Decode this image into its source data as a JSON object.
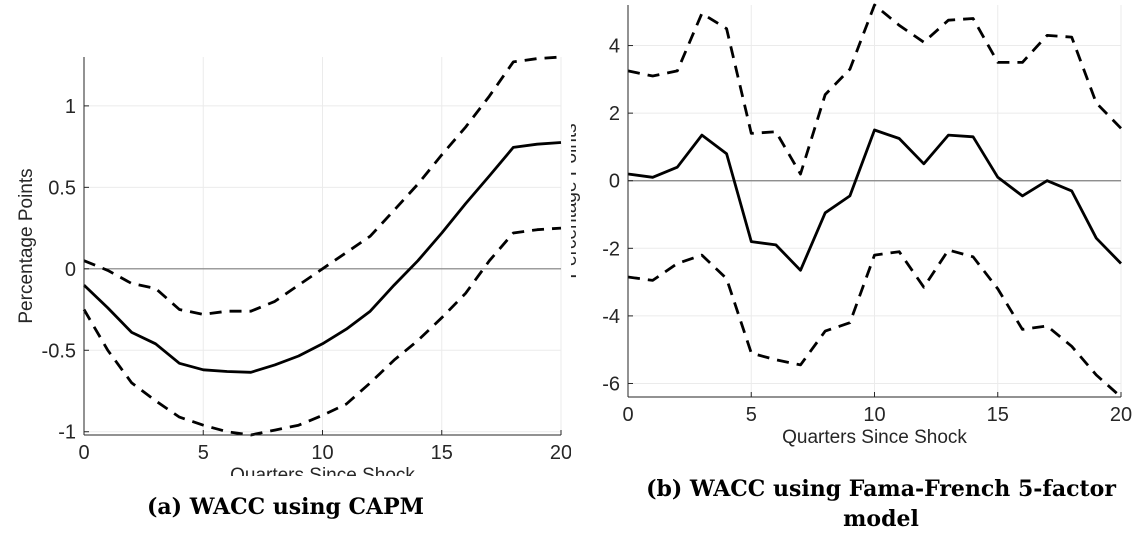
{
  "chart_data": [
    {
      "type": "line",
      "caption": "(a) WACC using CAPM",
      "xlabel": "Quarters Since Shock",
      "ylabel": "Percentage Points",
      "xlim": [
        0,
        20
      ],
      "ylim": [
        -1.02,
        1.3
      ],
      "xticks": [
        0,
        5,
        10,
        15,
        20
      ],
      "yticks": [
        -1,
        -0.5,
        0,
        0.5,
        1
      ],
      "ytick_labels": [
        "-1",
        "-0.5",
        "0",
        "0.5",
        "1"
      ],
      "grid": true,
      "zero_line": 0,
      "series": [
        {
          "role": "estimate",
          "style": "solid",
          "x": [
            0,
            1,
            2,
            3,
            4,
            5,
            6,
            7,
            8,
            9,
            10,
            11,
            12,
            13,
            14,
            15,
            16,
            17,
            18,
            19,
            20
          ],
          "y": [
            -0.1,
            -0.24,
            -0.39,
            -0.46,
            -0.58,
            -0.62,
            -0.63,
            -0.635,
            -0.59,
            -0.535,
            -0.46,
            -0.37,
            -0.26,
            -0.1,
            0.05,
            0.22,
            0.4,
            0.57,
            0.745,
            0.765,
            0.775
          ]
        },
        {
          "role": "upper",
          "style": "dashed",
          "x": [
            0,
            1,
            2,
            3,
            4,
            5,
            6,
            7,
            8,
            9,
            10,
            11,
            12,
            13,
            14,
            15,
            16,
            17,
            18,
            19,
            20
          ],
          "y": [
            0.05,
            -0.01,
            -0.09,
            -0.12,
            -0.25,
            -0.28,
            -0.26,
            -0.26,
            -0.2,
            -0.1,
            0.0,
            0.1,
            0.2,
            0.36,
            0.52,
            0.7,
            0.87,
            1.06,
            1.27,
            1.29,
            1.3
          ]
        },
        {
          "role": "lower",
          "style": "dashed",
          "x": [
            0,
            1,
            2,
            3,
            4,
            5,
            6,
            7,
            8,
            9,
            10,
            11,
            12,
            13,
            14,
            15,
            16,
            17,
            18,
            19,
            20
          ],
          "y": [
            -0.25,
            -0.5,
            -0.7,
            -0.81,
            -0.91,
            -0.96,
            -1.0,
            -1.02,
            -0.99,
            -0.96,
            -0.9,
            -0.83,
            -0.7,
            -0.56,
            -0.44,
            -0.3,
            -0.15,
            0.05,
            0.22,
            0.24,
            0.25
          ]
        }
      ]
    },
    {
      "type": "line",
      "caption": "(b) WACC using Fama-French 5-factor model",
      "xlabel": "Quarters Since Shock",
      "ylabel": "Percentage Points",
      "xlim": [
        0,
        20
      ],
      "ylim": [
        -6.4,
        5.2
      ],
      "xticks": [
        0,
        5,
        10,
        15,
        20
      ],
      "yticks": [
        -6,
        -4,
        -2,
        0,
        2,
        4
      ],
      "ytick_labels": [
        "-6",
        "-4",
        "-2",
        "0",
        "2",
        "4"
      ],
      "grid": true,
      "zero_line": 0,
      "series": [
        {
          "role": "estimate",
          "style": "solid",
          "x": [
            0,
            1,
            2,
            3,
            4,
            5,
            6,
            7,
            8,
            9,
            10,
            11,
            12,
            13,
            14,
            15,
            16,
            17,
            18,
            19,
            20
          ],
          "y": [
            0.2,
            0.1,
            0.4,
            1.35,
            0.8,
            -1.8,
            -1.9,
            -2.65,
            -0.95,
            -0.45,
            1.5,
            1.25,
            0.5,
            1.35,
            1.3,
            0.1,
            -0.45,
            0.0,
            -0.3,
            -1.7,
            -2.45
          ]
        },
        {
          "role": "upper",
          "style": "dashed",
          "x": [
            0,
            1,
            2,
            3,
            4,
            5,
            6,
            7,
            8,
            9,
            10,
            11,
            12,
            13,
            14,
            15,
            16,
            17,
            18,
            19,
            20
          ],
          "y": [
            3.25,
            3.1,
            3.25,
            4.95,
            4.5,
            1.4,
            1.45,
            0.2,
            2.55,
            3.3,
            5.2,
            4.6,
            4.1,
            4.75,
            4.8,
            3.5,
            3.5,
            4.3,
            4.25,
            2.3,
            1.55
          ]
        },
        {
          "role": "lower",
          "style": "dashed",
          "x": [
            0,
            1,
            2,
            3,
            4,
            5,
            6,
            7,
            8,
            9,
            10,
            11,
            12,
            13,
            14,
            15,
            16,
            17,
            18,
            19,
            20
          ],
          "y": [
            -2.85,
            -2.95,
            -2.45,
            -2.2,
            -2.9,
            -5.1,
            -5.3,
            -5.45,
            -4.45,
            -4.2,
            -2.2,
            -2.1,
            -3.15,
            -2.05,
            -2.25,
            -3.2,
            -4.4,
            -4.3,
            -4.9,
            -5.75,
            -6.4
          ]
        }
      ]
    }
  ]
}
